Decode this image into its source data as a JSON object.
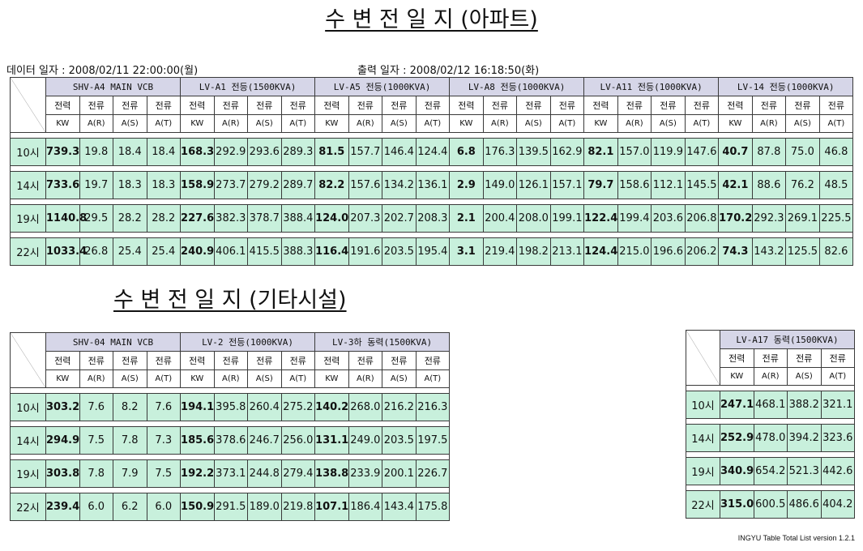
{
  "titles": {
    "main": "수 변 전 일 지 (아파트)",
    "sub": "수 변 전 일 지 (기타시설)"
  },
  "meta": {
    "data_label": "데이터 일자 :",
    "data_value": "2008/02/11 22:00:00(월)",
    "print_label": "출력 일자 :",
    "print_value": "2008/02/12 16:18:50(화)"
  },
  "sublabels": {
    "power": "전력",
    "current": "전류",
    "kw": "KW",
    "ar": "A(R)",
    "as": "A(S)",
    "at": "A(T)"
  },
  "table_apartment": {
    "groups": [
      "SHV-A4 MAIN VCB",
      "LV-A1 전등(1500KVA)",
      "LV-A5 전등(1000KVA)",
      "LV-A8 전등(1000KVA)",
      "LV-A11 전등(1000KVA)",
      "LV-14 전등(1000KVA)"
    ],
    "rows": [
      {
        "hour": "10시",
        "values": [
          "739.3",
          "19.8",
          "18.4",
          "18.4",
          "168.3",
          "292.9",
          "293.6",
          "289.3",
          "81.5",
          "157.7",
          "146.4",
          "124.4",
          "6.8",
          "176.3",
          "139.5",
          "162.9",
          "82.1",
          "157.0",
          "119.9",
          "147.6",
          "40.7",
          "87.8",
          "75.0",
          "46.8"
        ]
      },
      {
        "hour": "14시",
        "values": [
          "733.6",
          "19.7",
          "18.3",
          "18.3",
          "158.9",
          "273.7",
          "279.2",
          "289.7",
          "82.2",
          "157.6",
          "134.2",
          "136.1",
          "2.9",
          "149.0",
          "126.1",
          "157.1",
          "79.7",
          "158.6",
          "112.1",
          "145.5",
          "42.1",
          "88.6",
          "76.2",
          "48.5"
        ]
      },
      {
        "hour": "19시",
        "values": [
          "1140.8",
          "29.5",
          "28.2",
          "28.2",
          "227.6",
          "382.3",
          "378.7",
          "388.4",
          "124.0",
          "207.3",
          "202.7",
          "208.3",
          "2.1",
          "200.4",
          "208.0",
          "199.1",
          "122.4",
          "199.4",
          "203.6",
          "206.8",
          "170.2",
          "292.3",
          "269.1",
          "225.5"
        ]
      },
      {
        "hour": "22시",
        "values": [
          "1033.4",
          "26.8",
          "25.4",
          "25.4",
          "240.9",
          "406.1",
          "415.5",
          "388.3",
          "116.4",
          "191.6",
          "203.5",
          "195.4",
          "3.1",
          "219.4",
          "198.2",
          "213.1",
          "124.4",
          "215.0",
          "196.6",
          "206.2",
          "74.3",
          "143.2",
          "125.5",
          "82.6"
        ]
      }
    ]
  },
  "table_other": {
    "groups": [
      "SHV-04 MAIN VCB",
      "LV-2 전등(1000KVA)",
      "LV-3하 동력(1500KVA)"
    ],
    "rows": [
      {
        "hour": "10시",
        "values": [
          "303.2",
          "7.6",
          "8.2",
          "7.6",
          "194.1",
          "395.8",
          "260.4",
          "275.2",
          "140.2",
          "268.0",
          "216.2",
          "216.3"
        ]
      },
      {
        "hour": "14시",
        "values": [
          "294.9",
          "7.5",
          "7.8",
          "7.3",
          "185.6",
          "378.6",
          "246.7",
          "256.0",
          "131.1",
          "249.0",
          "203.5",
          "197.5"
        ]
      },
      {
        "hour": "19시",
        "values": [
          "303.8",
          "7.8",
          "7.9",
          "7.5",
          "192.2",
          "373.1",
          "244.8",
          "279.4",
          "138.8",
          "233.9",
          "200.1",
          "226.7"
        ]
      },
      {
        "hour": "22시",
        "values": [
          "239.4",
          "6.0",
          "6.2",
          "6.0",
          "150.9",
          "291.5",
          "189.0",
          "219.8",
          "107.1",
          "186.4",
          "143.4",
          "175.8"
        ]
      }
    ]
  },
  "table_a17": {
    "groups": [
      "LV-A17 동력(1500KVA)"
    ],
    "rows": [
      {
        "hour": "10시",
        "values": [
          "247.1",
          "468.1",
          "388.2",
          "321.1"
        ]
      },
      {
        "hour": "14시",
        "values": [
          "252.9",
          "478.0",
          "394.2",
          "323.6"
        ]
      },
      {
        "hour": "19시",
        "values": [
          "340.9",
          "654.2",
          "521.3",
          "442.6"
        ]
      },
      {
        "hour": "22시",
        "values": [
          "315.0",
          "600.5",
          "486.6",
          "404.2"
        ]
      }
    ]
  },
  "footer": "INGYU Table Total List version 1.2.1"
}
